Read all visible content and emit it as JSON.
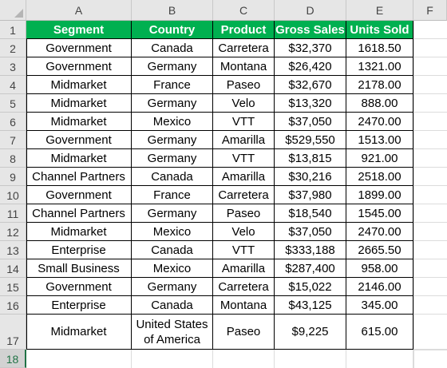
{
  "columns": [
    "A",
    "B",
    "C",
    "D",
    "E",
    "F"
  ],
  "row_numbers": [
    "1",
    "2",
    "3",
    "4",
    "5",
    "6",
    "7",
    "8",
    "9",
    "10",
    "11",
    "12",
    "13",
    "14",
    "15",
    "16",
    "17",
    "18"
  ],
  "headers": [
    "Segment",
    "Country",
    "Product",
    "Gross Sales",
    "Units Sold"
  ],
  "rows": [
    [
      "Government",
      "Canada",
      "Carretera",
      "$32,370",
      "1618.50"
    ],
    [
      "Government",
      "Germany",
      "Montana",
      "$26,420",
      "1321.00"
    ],
    [
      "Midmarket",
      "France",
      "Paseo",
      "$32,670",
      "2178.00"
    ],
    [
      "Midmarket",
      "Germany",
      "Velo",
      "$13,320",
      "888.00"
    ],
    [
      "Midmarket",
      "Mexico",
      "VTT",
      "$37,050",
      "2470.00"
    ],
    [
      "Government",
      "Germany",
      "Amarilla",
      "$529,550",
      "1513.00"
    ],
    [
      "Midmarket",
      "Germany",
      "VTT",
      "$13,815",
      "921.00"
    ],
    [
      "Channel Partners",
      "Canada",
      "Amarilla",
      "$30,216",
      "2518.00"
    ],
    [
      "Government",
      "France",
      "Carretera",
      "$37,980",
      "1899.00"
    ],
    [
      "Channel Partners",
      "Germany",
      "Paseo",
      "$18,540",
      "1545.00"
    ],
    [
      "Midmarket",
      "Mexico",
      "Velo",
      "$37,050",
      "2470.00"
    ],
    [
      "Enterprise",
      "Canada",
      "VTT",
      "$333,188",
      "2665.50"
    ],
    [
      "Small Business",
      "Mexico",
      "Amarilla",
      "$287,400",
      "958.00"
    ],
    [
      "Government",
      "Germany",
      "Carretera",
      "$15,022",
      "2146.00"
    ],
    [
      "Enterprise",
      "Canada",
      "Montana",
      "$43,125",
      "345.00"
    ],
    [
      "Midmarket",
      "United States of America",
      "Paseo",
      "$9,225",
      "615.00"
    ]
  ],
  "selected_row": "18",
  "colors": {
    "header_fill": "#00b050",
    "header_text": "#ffffff",
    "selection": "#217346"
  }
}
